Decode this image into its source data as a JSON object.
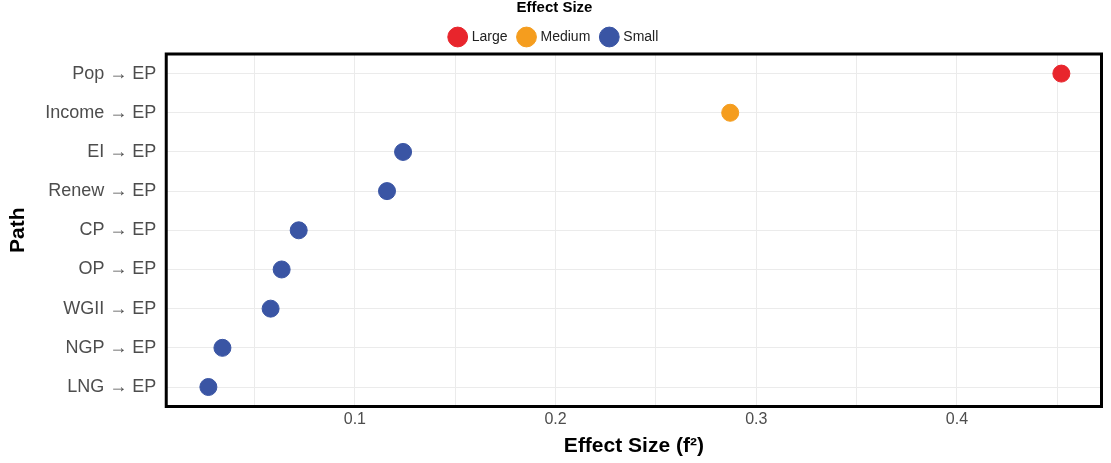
{
  "chart_data": {
    "type": "scatter",
    "orientation": "horizontal",
    "xlabel": "Effect Size (f²)",
    "ylabel": "Path",
    "legend_title": "Effect Size",
    "legend": "top",
    "grid": true,
    "marker": "circle",
    "categories": [
      "Pop → EP",
      "Income → EP",
      "EI → EP",
      "Renew → EP",
      "CP → EP",
      "OP → EP",
      "WGII → EP",
      "NGP → EP",
      "LNG → EP"
    ],
    "xlim": [
      0.006,
      0.472
    ],
    "xticks": [
      {
        "value": 0.05,
        "label": null
      },
      0.1,
      {
        "value": 0.15,
        "label": null
      },
      0.2,
      {
        "value": 0.25,
        "label": null
      },
      0.3,
      {
        "value": 0.35,
        "label": null
      },
      0.4,
      {
        "value": 0.45,
        "label": null
      }
    ],
    "series": [
      {
        "name": "Large",
        "color": "#e8252c",
        "values": [
          0.452,
          null,
          null,
          null,
          null,
          null,
          null,
          null,
          null
        ]
      },
      {
        "name": "Medium",
        "color": "#f59d1e",
        "values": [
          null,
          0.287,
          null,
          null,
          null,
          null,
          null,
          null,
          null
        ]
      },
      {
        "name": "Small",
        "color": "#3a55a4",
        "values": [
          null,
          null,
          0.124,
          0.116,
          0.072,
          0.0635,
          0.058,
          0.034,
          0.027
        ]
      }
    ]
  }
}
